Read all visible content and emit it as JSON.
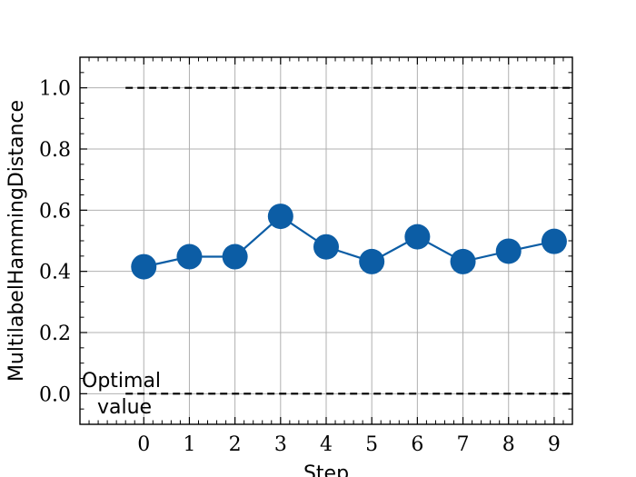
{
  "chart_data": {
    "type": "line",
    "title": "",
    "xlabel": "Step",
    "ylabel": "MultilabelHammingDistance",
    "x": [
      0,
      1,
      2,
      3,
      4,
      5,
      6,
      7,
      8,
      9
    ],
    "series": [
      {
        "values": [
          0.415,
          0.448,
          0.448,
          0.58,
          0.48,
          0.432,
          0.513,
          0.432,
          0.466,
          0.498
        ]
      }
    ],
    "reference_lines": [
      1.0,
      0.0
    ],
    "annotation": "Optimal\nvalue",
    "xlim": [
      -1.4,
      9.4
    ],
    "ylim": [
      -0.1,
      1.1
    ],
    "xticks": [
      "0",
      "1",
      "2",
      "3",
      "4",
      "5",
      "6",
      "7",
      "8",
      "9"
    ],
    "yticks": [
      "0.0",
      "0.2",
      "0.4",
      "0.6",
      "0.8",
      "1.0"
    ],
    "grid": true,
    "colors": {
      "series": "#0c5da5",
      "reference": "#000000",
      "grid": "#b0b0b0"
    }
  }
}
